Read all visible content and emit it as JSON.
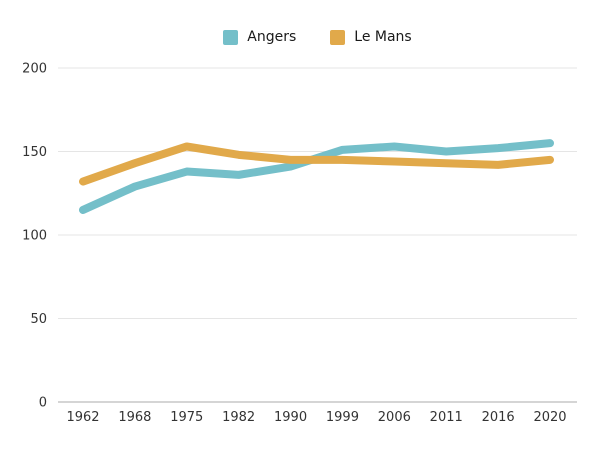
{
  "chart_data": {
    "type": "line",
    "title": "",
    "categories": [
      "1962",
      "1968",
      "1975",
      "1982",
      "1990",
      "1999",
      "2006",
      "2011",
      "2016",
      "2020"
    ],
    "series": [
      {
        "name": "Angers",
        "color": "#74BFC9",
        "values": [
          115,
          129,
          138,
          136,
          141,
          151,
          153,
          150,
          152,
          155
        ]
      },
      {
        "name": "Le Mans",
        "color": "#E1A94A",
        "values": [
          132,
          143,
          153,
          148,
          145,
          145,
          144,
          143,
          142,
          145
        ]
      }
    ],
    "y_ticks": [
      0,
      50,
      100,
      150,
      200
    ],
    "ylim": [
      0,
      200
    ],
    "grid": true,
    "legend_position": "top",
    "line_width": 8
  },
  "styles": {
    "background": "#ffffff",
    "text_color": "#333333",
    "grid_color": "#e5e5e5",
    "axis_color": "#ababab",
    "tick_font_size": 13
  }
}
